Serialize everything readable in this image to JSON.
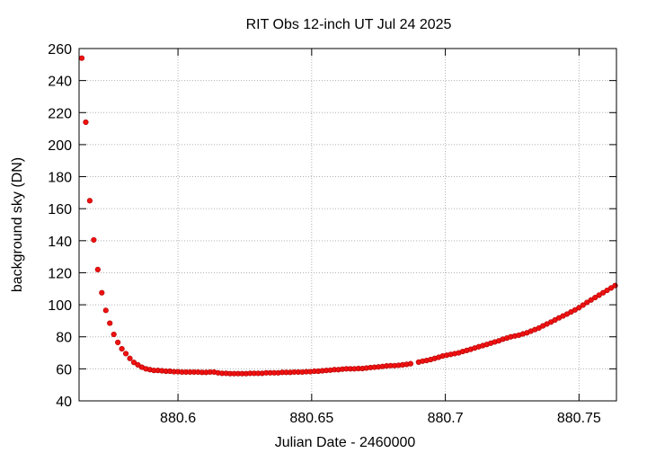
{
  "chart_data": {
    "type": "scatter",
    "title": "RIT Obs 12-inch UT Jul 24 2025",
    "xlabel": "Julian Date - 2460000",
    "ylabel": "background sky (DN)",
    "xlim": [
      880.563,
      880.764
    ],
    "ylim": [
      40,
      260
    ],
    "xticks": [
      880.6,
      880.65,
      880.7,
      880.75
    ],
    "xtick_labels": [
      "880.6",
      "880.65",
      "880.7",
      "880.75"
    ],
    "yticks": [
      40,
      60,
      80,
      100,
      120,
      140,
      160,
      180,
      200,
      220,
      240,
      260
    ],
    "ytick_labels": [
      "40",
      "60",
      "80",
      "100",
      "120",
      "140",
      "160",
      "180",
      "200",
      "220",
      "240",
      "260"
    ],
    "grid": true,
    "marker_color": "#ee1111",
    "series": [
      {
        "x": [
          880.564,
          880.5655,
          880.567,
          880.5685,
          880.57,
          880.5715,
          880.573,
          880.5745,
          880.576,
          880.5775,
          880.579,
          880.5805,
          880.582,
          880.5835,
          880.585,
          880.5865,
          880.588,
          880.5895,
          880.591,
          880.5925,
          880.594,
          880.5955,
          880.597,
          880.5985,
          880.6,
          880.6015,
          880.603,
          880.6045,
          880.606,
          880.6075,
          880.609,
          880.6105,
          880.612,
          880.6135,
          880.615,
          880.6165,
          880.618,
          880.6195,
          880.621,
          880.6225,
          880.624,
          880.6255,
          880.627,
          880.6285,
          880.63,
          880.6315,
          880.633,
          880.6345,
          880.636,
          880.6375,
          880.639,
          880.6405,
          880.642,
          880.6435,
          880.645,
          880.6465,
          880.648,
          880.6495,
          880.651,
          880.6525,
          880.654,
          880.6555,
          880.657,
          880.6585,
          880.66,
          880.6615,
          880.663,
          880.6645,
          880.666,
          880.6675,
          880.669,
          880.6705,
          880.672,
          880.6735,
          880.675,
          880.6765,
          880.678,
          880.6795,
          880.681,
          880.6825,
          880.684,
          880.6855,
          880.687,
          880.69,
          880.6915,
          880.693,
          880.6945,
          880.696,
          880.6975,
          880.699,
          880.7005,
          880.702,
          880.7035,
          880.705,
          880.7065,
          880.708,
          880.7095,
          880.711,
          880.7125,
          880.714,
          880.7155,
          880.717,
          880.7185,
          880.72,
          880.7215,
          880.723,
          880.7245,
          880.726,
          880.7275,
          880.729,
          880.7305,
          880.732,
          880.7335,
          880.735,
          880.7365,
          880.738,
          880.7395,
          880.741,
          880.7425,
          880.744,
          880.7455,
          880.747,
          880.7485,
          880.75,
          880.7515,
          880.753,
          880.7545,
          880.756,
          880.7575,
          880.759,
          880.7605,
          880.762,
          880.7635
        ],
        "y": [
          254,
          214,
          165,
          140.5,
          122,
          107.5,
          96.5,
          88.5,
          81.5,
          76.5,
          72.5,
          69.5,
          66.5,
          64,
          62.5,
          61,
          60,
          59.5,
          59,
          59,
          58.8,
          58.5,
          58.5,
          58.2,
          58.2,
          58,
          58,
          58,
          58,
          58,
          57.8,
          57.8,
          58,
          58,
          57.5,
          57.2,
          57.2,
          57,
          57,
          57,
          57,
          57,
          57.2,
          57.2,
          57.2,
          57.2,
          57.5,
          57.5,
          57.5,
          57.5,
          57.8,
          57.8,
          57.8,
          58,
          58,
          58,
          58.2,
          58.2,
          58.5,
          58.5,
          58.8,
          59,
          59.2,
          59.5,
          59.5,
          59.8,
          60,
          60,
          60,
          60.2,
          60.2,
          60.5,
          60.8,
          61,
          61.2,
          61.5,
          61.8,
          62,
          62,
          62.2,
          62.5,
          62.8,
          63.2,
          64.2,
          64.8,
          65.2,
          65.8,
          66.5,
          67.2,
          68,
          68.5,
          69,
          69.5,
          70,
          70.8,
          71.5,
          72.2,
          73,
          73.8,
          74.5,
          75.2,
          76,
          76.8,
          77.5,
          78.5,
          79.2,
          80,
          80.5,
          81,
          81.8,
          82.5,
          83.5,
          84.5,
          85.5,
          86.8,
          88,
          89.2,
          90.5,
          91.8,
          93,
          94.2,
          95.5,
          96.8,
          98.2,
          99.8,
          101.5,
          103,
          104.5,
          106,
          107.5,
          109,
          110.5,
          112
        ]
      }
    ]
  }
}
